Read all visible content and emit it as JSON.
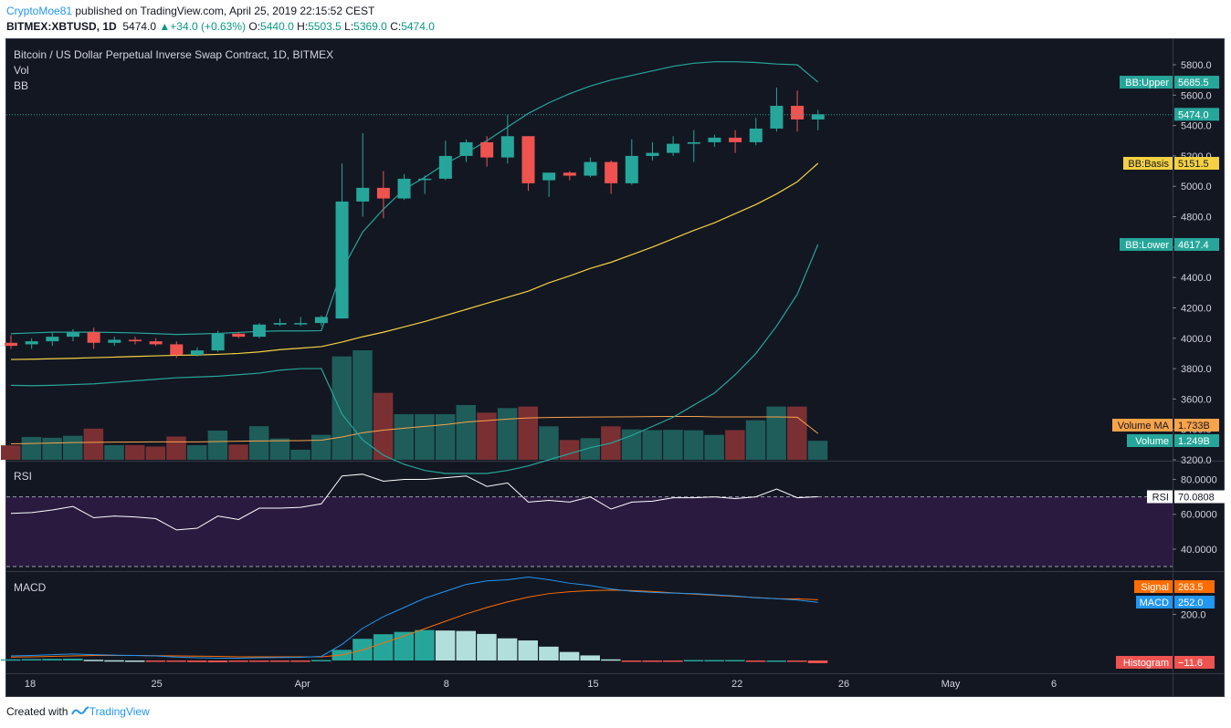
{
  "header": {
    "author": "CryptoMoe81",
    "published": " published on TradingView.com, April 25, 2019 22:15:52 CEST",
    "symbol": "BITMEX:XBTUSD, 1D",
    "last": "5474.0",
    "change": "+34.0 (+0.63%)",
    "o_label": "O:",
    "o": "5440.0",
    "h_label": "H:",
    "h": "5503.5",
    "l_label": "L:",
    "l": "5369.0",
    "c_label": "C:",
    "c": "5474.0"
  },
  "panes": {
    "main_title": "Bitcoin / US Dollar Perpetual Inverse Swap Contract, 1D, BITMEX",
    "vol_label": "Vol",
    "bb_label": "BB",
    "rsi_label": "RSI",
    "macd_label": "MACD"
  },
  "footer": {
    "created_with": "Created with",
    "brand": "TradingView"
  },
  "colors": {
    "up": "#26a69a",
    "down": "#ef5350",
    "bb_band": "#26a69a",
    "bb_basis": "#f5d142",
    "vol_up": "#1e5d5a",
    "vol_down": "#7a3033",
    "vol_ma": "#f9a34b",
    "rsi": "#ffffff",
    "rsi_bg": "#2a1a3f",
    "macd": "#2196f3",
    "signal": "#ff6d00",
    "hist_up_strong": "#26a69a",
    "hist_up_weak": "#b2dfdb",
    "hist_down": "#ef5350"
  },
  "chart_data": [
    {
      "type": "candlestick",
      "title": "Bitcoin / US Dollar Perpetual Inverse Swap Contract, 1D, BITMEX",
      "x_ticks": [
        "18",
        "25",
        "Apr",
        "8",
        "15",
        "22",
        "26",
        "May",
        "6"
      ],
      "y_ticks": [
        "3200.0",
        "3400.0",
        "3600.0",
        "3800.0",
        "4000.0",
        "4200.0",
        "4400.0",
        "4600.0",
        "4800.0",
        "5000.0",
        "5200.0",
        "5400.0",
        "5600.0",
        "5800.0"
      ],
      "ylim": [
        3200,
        5800
      ],
      "candles": [
        {
          "o": 3970,
          "h": 4020,
          "l": 3930,
          "c": 3950
        },
        {
          "o": 3960,
          "h": 4000,
          "l": 3930,
          "c": 3980
        },
        {
          "o": 3980,
          "h": 4040,
          "l": 3950,
          "c": 4010
        },
        {
          "o": 4010,
          "h": 4060,
          "l": 3980,
          "c": 4040
        },
        {
          "o": 4040,
          "h": 4070,
          "l": 3930,
          "c": 3970
        },
        {
          "o": 3970,
          "h": 4010,
          "l": 3950,
          "c": 3990
        },
        {
          "o": 3990,
          "h": 4010,
          "l": 3960,
          "c": 3980
        },
        {
          "o": 3980,
          "h": 4000,
          "l": 3950,
          "c": 3960
        },
        {
          "o": 3960,
          "h": 3980,
          "l": 3870,
          "c": 3890
        },
        {
          "o": 3890,
          "h": 3940,
          "l": 3880,
          "c": 3920
        },
        {
          "o": 3920,
          "h": 4050,
          "l": 3910,
          "c": 4030
        },
        {
          "o": 4030,
          "h": 4040,
          "l": 4000,
          "c": 4010
        },
        {
          "o": 4010,
          "h": 4100,
          "l": 4000,
          "c": 4090
        },
        {
          "o": 4090,
          "h": 4130,
          "l": 4080,
          "c": 4100
        },
        {
          "o": 4100,
          "h": 4140,
          "l": 4080,
          "c": 4100
        },
        {
          "o": 4100,
          "h": 4150,
          "l": 4080,
          "c": 4140
        },
        {
          "o": 4130,
          "h": 5150,
          "l": 4130,
          "c": 4900
        },
        {
          "o": 4900,
          "h": 5350,
          "l": 4800,
          "c": 4990
        },
        {
          "o": 4990,
          "h": 5100,
          "l": 4790,
          "c": 4920
        },
        {
          "o": 4920,
          "h": 5080,
          "l": 4910,
          "c": 5050
        },
        {
          "o": 5050,
          "h": 5070,
          "l": 4950,
          "c": 5050
        },
        {
          "o": 5050,
          "h": 5300,
          "l": 5040,
          "c": 5200
        },
        {
          "o": 5200,
          "h": 5310,
          "l": 5160,
          "c": 5290
        },
        {
          "o": 5290,
          "h": 5330,
          "l": 5130,
          "c": 5190
        },
        {
          "o": 5190,
          "h": 5470,
          "l": 5150,
          "c": 5330
        },
        {
          "o": 5330,
          "h": 5330,
          "l": 4970,
          "c": 5020
        },
        {
          "o": 5040,
          "h": 5080,
          "l": 4930,
          "c": 5090
        },
        {
          "o": 5090,
          "h": 5100,
          "l": 5040,
          "c": 5070
        },
        {
          "o": 5070,
          "h": 5190,
          "l": 5060,
          "c": 5160
        },
        {
          "o": 5160,
          "h": 5170,
          "l": 4950,
          "c": 5020
        },
        {
          "o": 5020,
          "h": 5310,
          "l": 5010,
          "c": 5200
        },
        {
          "o": 5200,
          "h": 5290,
          "l": 5170,
          "c": 5220
        },
        {
          "o": 5220,
          "h": 5330,
          "l": 5200,
          "c": 5280
        },
        {
          "o": 5280,
          "h": 5370,
          "l": 5160,
          "c": 5290
        },
        {
          "o": 5290,
          "h": 5340,
          "l": 5260,
          "c": 5320
        },
        {
          "o": 5320,
          "h": 5370,
          "l": 5220,
          "c": 5290
        },
        {
          "o": 5290,
          "h": 5450,
          "l": 5270,
          "c": 5380
        },
        {
          "o": 5380,
          "h": 5650,
          "l": 5360,
          "c": 5530
        },
        {
          "o": 5530,
          "h": 5630,
          "l": 5360,
          "c": 5440
        },
        {
          "o": 5440,
          "h": 5503.5,
          "l": 5369,
          "c": 5474
        }
      ],
      "bb_upper": [
        4030,
        4035,
        4040,
        4040,
        4040,
        4038,
        4035,
        4030,
        4025,
        4028,
        4032,
        4038,
        4045,
        4048,
        4048,
        4050,
        4450,
        4700,
        4850,
        4980,
        5060,
        5150,
        5220,
        5300,
        5390,
        5480,
        5550,
        5610,
        5660,
        5700,
        5730,
        5760,
        5790,
        5810,
        5820,
        5820,
        5815,
        5805,
        5800,
        5685.5
      ],
      "bb_basis": [
        3860,
        3862,
        3865,
        3868,
        3872,
        3876,
        3880,
        3884,
        3888,
        3890,
        3894,
        3900,
        3910,
        3925,
        3935,
        3945,
        3975,
        4010,
        4040,
        4075,
        4110,
        4150,
        4190,
        4230,
        4270,
        4310,
        4365,
        4410,
        4460,
        4500,
        4550,
        4600,
        4655,
        4710,
        4760,
        4820,
        4880,
        4950,
        5030,
        5151.5
      ],
      "bb_lower": [
        3690,
        3688,
        3690,
        3695,
        3700,
        3710,
        3720,
        3730,
        3740,
        3745,
        3750,
        3760,
        3770,
        3790,
        3800,
        3800,
        3500,
        3330,
        3230,
        3170,
        3130,
        3110,
        3110,
        3110,
        3130,
        3160,
        3200,
        3240,
        3280,
        3310,
        3360,
        3420,
        3480,
        3560,
        3640,
        3760,
        3900,
        4080,
        4290,
        4617.4
      ],
      "labels": {
        "bb_upper": "BB:Upper",
        "bb_upper_val": "5685.5",
        "price": "5474.0",
        "bb_basis": "BB:Basis",
        "bb_basis_val": "5151.5",
        "bb_lower": "BB:Lower",
        "bb_lower_val": "4617.4",
        "vol_ma": "Volume MA",
        "vol_ma_val": "1.733B",
        "volume": "Volume",
        "volume_val": "1.249B"
      },
      "volume": [
        0.95,
        1.5,
        1.45,
        1.58,
        2.05,
        0.96,
        0.96,
        0.87,
        1.53,
        0.96,
        1.92,
        1.0,
        2.21,
        1.4,
        0.66,
        1.64,
        6.8,
        7.2,
        4.4,
        3.0,
        3.0,
        3.0,
        3.6,
        3.1,
        3.4,
        3.5,
        2.2,
        1.3,
        1.42,
        2.2,
        2.0,
        1.95,
        1.97,
        1.94,
        1.64,
        1.95,
        2.6,
        3.5,
        3.5,
        1.249
      ],
      "volume_ma": [
        1.05,
        1.07,
        1.1,
        1.13,
        1.15,
        1.16,
        1.17,
        1.18,
        1.18,
        1.18,
        1.2,
        1.22,
        1.24,
        1.25,
        1.26,
        1.29,
        1.5,
        1.78,
        1.95,
        2.08,
        2.2,
        2.32,
        2.48,
        2.58,
        2.68,
        2.75,
        2.78,
        2.8,
        2.81,
        2.82,
        2.83,
        2.84,
        2.85,
        2.85,
        2.82,
        2.82,
        2.82,
        2.82,
        2.8,
        1.733
      ],
      "volume_max": 12.0
    },
    {
      "type": "line",
      "title": "RSI",
      "ylim": [
        30,
        85
      ],
      "y_ticks": [
        "40.0000",
        "60.0000",
        "80.0000"
      ],
      "bands": [
        30,
        70
      ],
      "values": [
        60.5,
        61,
        62.5,
        64.5,
        58,
        59,
        58.5,
        57.5,
        51,
        52,
        59,
        57,
        63.5,
        63.5,
        64,
        66,
        82,
        83,
        79,
        80,
        80,
        81,
        82,
        76,
        78,
        67,
        68,
        67,
        70,
        63,
        67,
        67.5,
        69.5,
        69.5,
        70,
        69,
        70,
        74.5,
        69.5,
        70.0808
      ],
      "labels": {
        "rsi": "RSI",
        "rsi_val": "70.0808"
      }
    },
    {
      "type": "line",
      "title": "MACD",
      "ylim": [
        -50,
        400
      ],
      "y_ticks": [
        "200.0"
      ],
      "macd": [
        20,
        22,
        25,
        28,
        25,
        23,
        22,
        20,
        15,
        12,
        10,
        10,
        12,
        13,
        14,
        18,
        70,
        140,
        190,
        230,
        270,
        300,
        330,
        345,
        350,
        362,
        350,
        335,
        325,
        310,
        300,
        295,
        292,
        290,
        285,
        280,
        272,
        268,
        262,
        252.0
      ],
      "signal": [
        15,
        16,
        18,
        20,
        22,
        22,
        22,
        21,
        20,
        19,
        18,
        16,
        16,
        16,
        16,
        16,
        24,
        46,
        76,
        106,
        138,
        170,
        202,
        230,
        254,
        275,
        290,
        298,
        303,
        305,
        303,
        299,
        293,
        288,
        283,
        278,
        273,
        268,
        267,
        263.5
      ],
      "histogram": [
        5,
        6,
        7,
        8,
        3,
        1,
        0,
        -1,
        -5,
        -7,
        -8,
        -6,
        -4,
        -3,
        -2,
        2,
        46,
        94,
        114,
        124,
        132,
        130,
        128,
        115,
        96,
        87,
        60,
        37,
        22,
        5,
        -3,
        -4,
        -1,
        2,
        2,
        2,
        -1,
        0,
        -5,
        -11.6
      ],
      "labels": {
        "signal": "Signal",
        "signal_val": "263.5",
        "macd": "MACD",
        "macd_val": "252.0",
        "hist": "Histogram",
        "hist_val": "−11.6"
      }
    }
  ]
}
